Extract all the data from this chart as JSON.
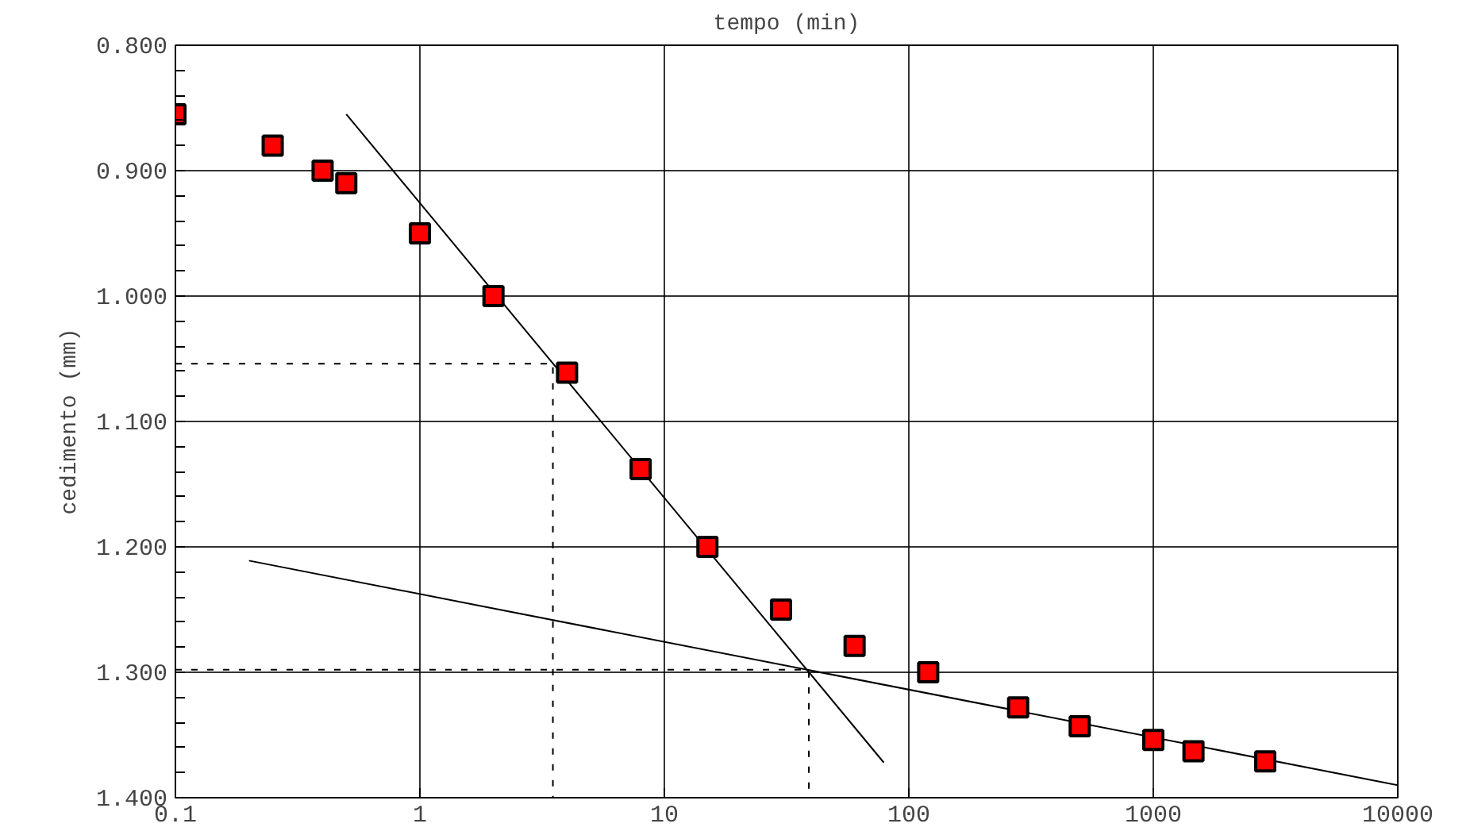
{
  "chart_data": {
    "type": "scatter",
    "xlabel": "tempo (min)",
    "ylabel": "cedimento (mm)",
    "log": "x",
    "grid": true,
    "xlim": [
      0.1,
      10000
    ],
    "xticks": [
      0.1,
      1,
      10,
      100,
      1000,
      10000
    ],
    "ylim": [
      1.4,
      0.8
    ],
    "yticks": [
      {
        "value": 0.8,
        "label": "0.800"
      },
      {
        "value": 0.82,
        "label": null
      },
      {
        "value": 0.84,
        "label": null
      },
      {
        "value": 0.86,
        "label": null
      },
      {
        "value": 0.88,
        "label": null
      },
      {
        "value": 0.9,
        "label": "0.900"
      },
      {
        "value": 0.92,
        "label": null
      },
      {
        "value": 0.94,
        "label": null
      },
      {
        "value": 0.96,
        "label": null
      },
      {
        "value": 0.98,
        "label": null
      },
      {
        "value": 1.0,
        "label": "1.000"
      },
      {
        "value": 1.02,
        "label": null
      },
      {
        "value": 1.04,
        "label": null
      },
      {
        "value": 1.06,
        "label": null
      },
      {
        "value": 1.08,
        "label": null
      },
      {
        "value": 1.1,
        "label": "1.100"
      },
      {
        "value": 1.12,
        "label": null
      },
      {
        "value": 1.14,
        "label": null
      },
      {
        "value": 1.16,
        "label": null
      },
      {
        "value": 1.18,
        "label": null
      },
      {
        "value": 1.2,
        "label": "1.200"
      },
      {
        "value": 1.22,
        "label": null
      },
      {
        "value": 1.24,
        "label": null
      },
      {
        "value": 1.26,
        "label": null
      },
      {
        "value": 1.28,
        "label": null
      },
      {
        "value": 1.3,
        "label": "1.300"
      },
      {
        "value": 1.32,
        "label": null
      },
      {
        "value": 1.34,
        "label": null
      },
      {
        "value": 1.36,
        "label": null
      },
      {
        "value": 1.38,
        "label": null
      },
      {
        "value": 1.4,
        "label": "1.400"
      }
    ],
    "series": [
      {
        "marker": "square",
        "color": "#ff0000",
        "x": [
          0.1,
          0.25,
          0.4,
          0.5,
          1,
          2,
          4,
          8,
          15,
          30,
          60,
          120,
          280,
          500,
          1000,
          1460,
          2870
        ],
        "values": [
          0.855,
          0.88,
          0.9,
          0.91,
          0.95,
          1.0,
          1.061,
          1.138,
          1.2,
          1.25,
          1.279,
          1.3,
          1.328,
          1.343,
          1.354,
          1.363,
          1.371
        ]
      },
      {
        "type": "line",
        "color": "#000000",
        "line_style": "solid",
        "x": [
          0.5,
          79
        ],
        "values": [
          0.855,
          1.372
        ]
      },
      {
        "type": "line",
        "color": "#000000",
        "line_style": "solid",
        "x": [
          0.2,
          10000
        ],
        "values": [
          1.211,
          1.39
        ]
      },
      {
        "type": "line",
        "color": "#000000",
        "line_style": "dashed",
        "x": [
          0.1,
          3.5,
          3.5
        ],
        "values": [
          1.054,
          1.054,
          1.4
        ]
      },
      {
        "type": "line",
        "color": "#000000",
        "line_style": "dashed",
        "x": [
          0.1,
          39,
          39
        ],
        "values": [
          1.298,
          1.298,
          1.4
        ]
      }
    ]
  }
}
